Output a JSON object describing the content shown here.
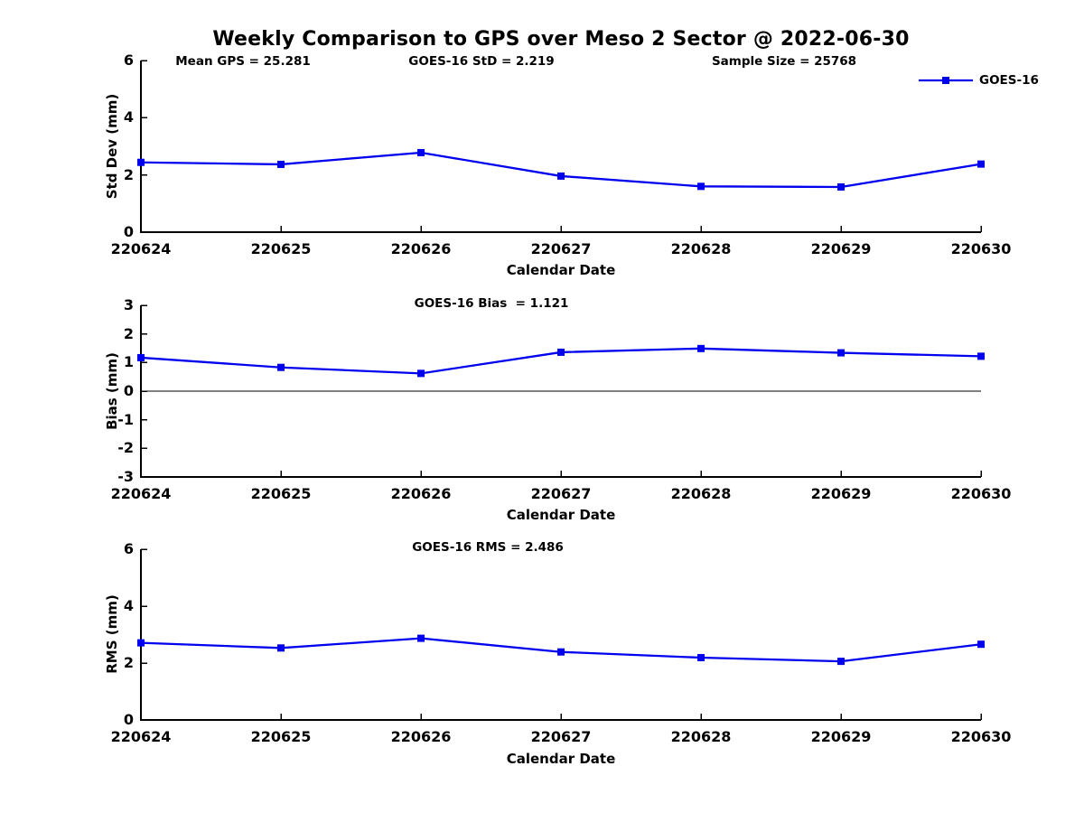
{
  "figure": {
    "title": "Weekly Comparison to GPS over Meso 2 Sector @ 2022-06-30",
    "background_color": "#ffffff",
    "accent_color": "#0000EE"
  },
  "legend": {
    "label": "GOES-16",
    "position": "top-right",
    "swatch": "line-with-square-marker"
  },
  "chart_data": [
    {
      "type": "line",
      "ylabel": "Std Dev (mm)",
      "xlabel": "Calendar Date",
      "ylim": [
        0,
        6
      ],
      "yticks": [
        0,
        2,
        4,
        6
      ],
      "grid": false,
      "categories": [
        "220624",
        "220625",
        "220626",
        "220627",
        "220628",
        "220629",
        "220630"
      ],
      "annotations": [
        {
          "text": "Mean GPS = 25.281"
        },
        {
          "text": "GOES-16 StD = 2.219"
        },
        {
          "text": "Sample Size = 25768"
        }
      ],
      "series": [
        {
          "name": "GOES-16",
          "color": "#0000EE",
          "marker": "square",
          "values": [
            2.44,
            2.37,
            2.78,
            1.96,
            1.6,
            1.58,
            2.38
          ]
        }
      ]
    },
    {
      "type": "line",
      "ylabel": "Bias (mm)",
      "xlabel": "Calendar Date",
      "ylim": [
        -3,
        3
      ],
      "yticks": [
        -3,
        -2,
        -1,
        0,
        1,
        2,
        3
      ],
      "grid": false,
      "zero_line": true,
      "categories": [
        "220624",
        "220625",
        "220626",
        "220627",
        "220628",
        "220629",
        "220630"
      ],
      "annotations": [
        {
          "text": "GOES-16 Bias  = 1.121"
        }
      ],
      "series": [
        {
          "name": "GOES-16",
          "color": "#0000EE",
          "marker": "square",
          "values": [
            1.17,
            0.83,
            0.62,
            1.36,
            1.49,
            1.34,
            1.22
          ]
        }
      ]
    },
    {
      "type": "line",
      "ylabel": "RMS (mm)",
      "xlabel": "Calendar Date",
      "ylim": [
        0,
        6
      ],
      "yticks": [
        0,
        2,
        4,
        6
      ],
      "grid": false,
      "categories": [
        "220624",
        "220625",
        "220626",
        "220627",
        "220628",
        "220629",
        "220630"
      ],
      "annotations": [
        {
          "text": "GOES-16 RMS = 2.486"
        }
      ],
      "series": [
        {
          "name": "GOES-16",
          "color": "#0000EE",
          "marker": "square",
          "values": [
            2.71,
            2.53,
            2.87,
            2.39,
            2.19,
            2.06,
            2.66
          ]
        }
      ]
    }
  ]
}
